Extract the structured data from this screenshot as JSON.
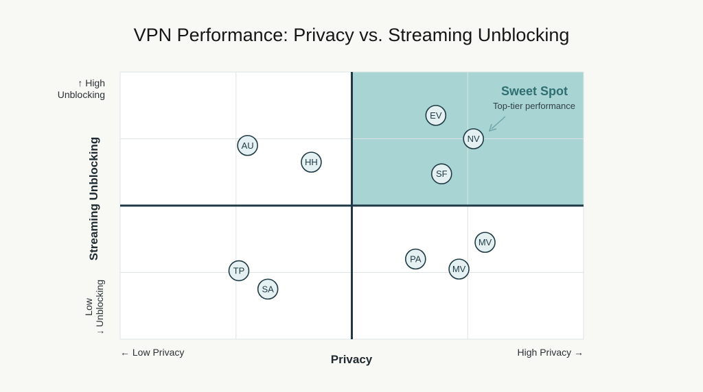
{
  "chart_data": {
    "type": "scatter",
    "title": "VPN Performance: Privacy vs. Streaming Unblocking",
    "xlabel": "Privacy",
    "ylabel": "Streaming Unblocking",
    "x_low_label": "← Low Privacy",
    "x_high_label": "High Privacy →",
    "y_high_label": [
      "↑ High",
      "Unblocking"
    ],
    "y_low_label": [
      "Low",
      "↓ Unblocking"
    ],
    "xlim": [
      0,
      8
    ],
    "ylim": [
      0,
      8
    ],
    "grid": true,
    "quadrant_divider": {
      "x": 4,
      "y": 4
    },
    "highlight_zone": {
      "title": "Sweet Spot",
      "subtitle": "Top-tier performance",
      "x_range": [
        4,
        8
      ],
      "y_range": [
        4,
        8
      ],
      "color": "#a9d4d4"
    },
    "points": [
      {
        "label": "EV",
        "x": 5.45,
        "y": 6.7
      },
      {
        "label": "NV",
        "x": 6.1,
        "y": 6.0
      },
      {
        "label": "SF",
        "x": 5.55,
        "y": 4.95
      },
      {
        "label": "AU",
        "x": 2.2,
        "y": 5.8
      },
      {
        "label": "HH",
        "x": 3.3,
        "y": 5.3
      },
      {
        "label": "MV",
        "x": 6.3,
        "y": 2.9
      },
      {
        "label": "PA",
        "x": 5.1,
        "y": 2.4
      },
      {
        "label": "MV",
        "x": 5.85,
        "y": 2.1
      },
      {
        "label": "TP",
        "x": 2.05,
        "y": 2.05
      },
      {
        "label": "SA",
        "x": 2.55,
        "y": 1.5
      }
    ]
  }
}
